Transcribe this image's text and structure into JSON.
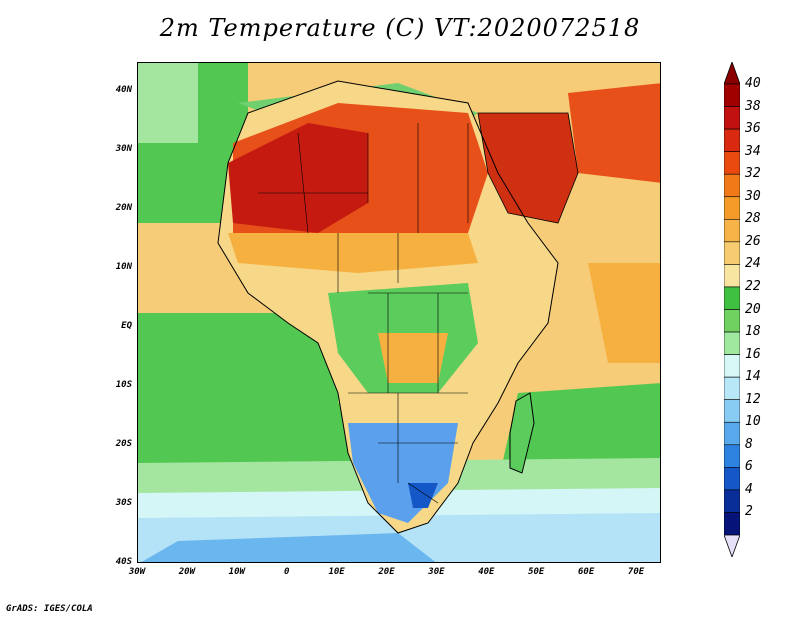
{
  "title": "2m Temperature (C) VT:2020072518",
  "credit": "GrADS: IGES/COLA",
  "lat_labels": [
    "40N",
    "30N",
    "20N",
    "10N",
    "EQ",
    "10S",
    "20S",
    "30S",
    "40S"
  ],
  "lat_values": [
    40,
    30,
    20,
    10,
    0,
    -10,
    -20,
    -30,
    -40
  ],
  "lon_labels": [
    "30W",
    "20W",
    "10W",
    "0",
    "10E",
    "20E",
    "30E",
    "40E",
    "50E",
    "60E",
    "70E"
  ],
  "lon_values": [
    -30,
    -20,
    -10,
    0,
    10,
    20,
    30,
    40,
    50,
    60,
    70
  ],
  "colorbar": {
    "labels": [
      "40",
      "38",
      "36",
      "34",
      "32",
      "30",
      "28",
      "26",
      "24",
      "22",
      "20",
      "18",
      "16",
      "14",
      "12",
      "10",
      "8",
      "6",
      "4",
      "2"
    ],
    "colors": [
      "#a00000",
      "#c01010",
      "#d92a10",
      "#ea4a10",
      "#f07a18",
      "#f49a28",
      "#f6b448",
      "#f7cc70",
      "#f8e6a0",
      "#40c040",
      "#70d060",
      "#a0e8a0",
      "#d8f8f8",
      "#b8e8f8",
      "#88ccf4",
      "#58aaec",
      "#2e82e0",
      "#1458c8",
      "#0a2e98",
      "#06147a"
    ],
    "top_arrow_color": "#8a0000",
    "bottom_arrow_color": "#e6e0f8"
  },
  "map_colors": {
    "ocean_tropical": "#f6cc78",
    "ocean_green": "#52c852",
    "ocean_light_green": "#a4e6a0",
    "ocean_cyan": "#d4f6f6",
    "ocean_light_blue": "#b4e2f6",
    "ocean_blue": "#6ab6ee",
    "sahara_hot": "#c41a10",
    "sahara_warm": "#e8501a",
    "desert_orange": "#f08028",
    "sahel": "#f6b040",
    "savanna": "#f6d888",
    "forest": "#5ccc5c",
    "southern_africa": "#5aa0ec",
    "arabia_hot": "#cf3012",
    "mediterranean": "#70d070"
  }
}
